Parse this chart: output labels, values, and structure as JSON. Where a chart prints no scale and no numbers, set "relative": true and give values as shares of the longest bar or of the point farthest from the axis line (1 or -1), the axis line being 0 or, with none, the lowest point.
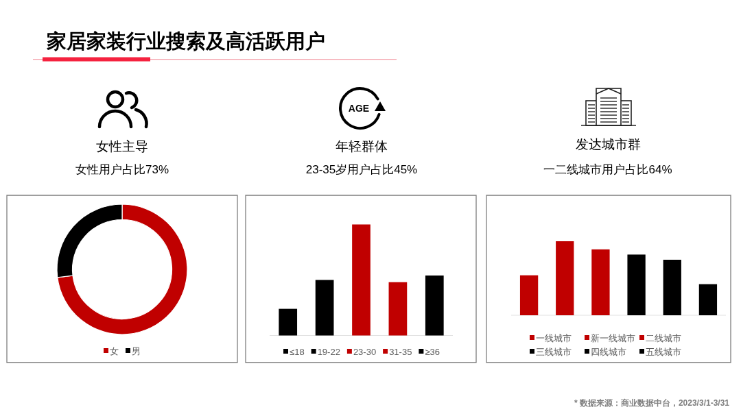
{
  "chart_data": [
    {
      "type": "other",
      "title": "家居家装行业搜索及高活跃用户",
      "annotations": [
        "* 数据来源：商业数据中台，2023/3/1-3/31"
      ]
    },
    {
      "type": "donut",
      "title": "女性主导",
      "subtitle": "女性用户占比73%",
      "categories": [
        "女",
        "男"
      ],
      "values": [
        73,
        27
      ],
      "colors": [
        "#c00000",
        "#000000"
      ],
      "legend": "bottom"
    },
    {
      "type": "bar",
      "title": "年轻群体",
      "subtitle": "23-35岁用户占比45%",
      "annotations": [
        "AGE"
      ],
      "categories": [
        null,
        null,
        null,
        null,
        null
      ],
      "series": [
        {
          "name": "≤18",
          "color": "#000000",
          "values": [
            0.24,
            null,
            null,
            null,
            null
          ]
        },
        {
          "name": "19-22",
          "color": "#000000",
          "values": [
            null,
            0.5,
            null,
            null,
            null
          ]
        },
        {
          "name": "23-30",
          "color": "#c00000",
          "values": [
            null,
            null,
            1,
            null,
            null
          ]
        },
        {
          "name": "31-35",
          "color": "#c00000",
          "values": [
            null,
            null,
            null,
            0.48,
            null
          ]
        },
        {
          "name": "≥36",
          "color": "#000000",
          "values": [
            null,
            null,
            null,
            null,
            0.54
          ]
        }
      ],
      "stacked": true,
      "relative": true,
      "legend": "bottom"
    },
    {
      "type": "bar",
      "title": "发达城市群",
      "subtitle": "一二线城市用户占比64%",
      "categories": [
        null,
        null,
        null,
        null,
        null,
        null
      ],
      "series": [
        {
          "name": "一线城市",
          "color": "#c00000",
          "values": [
            0.54,
            null,
            null,
            null,
            null,
            null
          ]
        },
        {
          "name": "新一线城市",
          "color": "#c00000",
          "values": [
            null,
            1,
            null,
            null,
            null,
            null
          ]
        },
        {
          "name": "二线城市",
          "color": "#c00000",
          "values": [
            null,
            null,
            0.89,
            null,
            null,
            null
          ]
        },
        {
          "name": "三线城市",
          "color": "#000000",
          "values": [
            null,
            null,
            null,
            0.82,
            null,
            null
          ]
        },
        {
          "name": "四线城市",
          "color": "#000000",
          "values": [
            null,
            null,
            null,
            null,
            0.75,
            null
          ]
        },
        {
          "name": "五线城市",
          "color": "#000000",
          "values": [
            null,
            null,
            null,
            null,
            null,
            0.42
          ]
        }
      ],
      "stacked": true,
      "relative": true,
      "legend": "bottom"
    }
  ]
}
